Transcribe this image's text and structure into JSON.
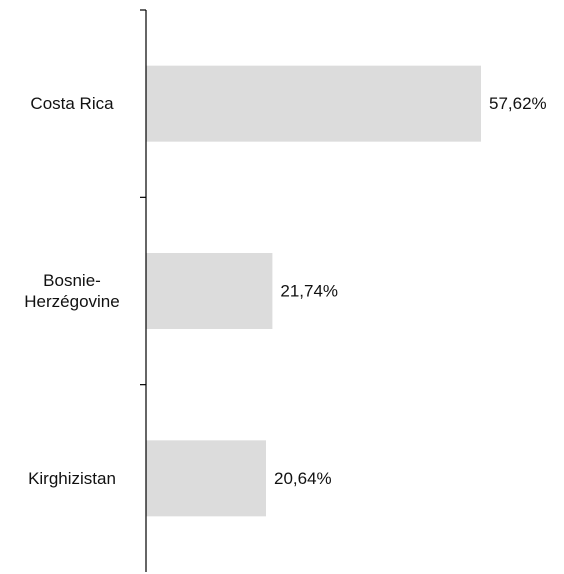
{
  "chart_data": {
    "type": "bar",
    "orientation": "horizontal",
    "title": "",
    "xlabel": "",
    "ylabel": "",
    "categories": [
      [
        "Costa Rica"
      ],
      [
        "Bosnie-",
        "Herzégovine"
      ],
      [
        "Kirghizistan"
      ]
    ],
    "values": [
      57.62,
      21.74,
      20.64
    ],
    "value_labels": [
      "57,62%",
      "21,74%",
      "20,64%"
    ],
    "xlim": [
      0,
      57.62
    ],
    "grid": false,
    "legend": "none",
    "colors": {
      "bar": "#dcdcdc",
      "axis": "#000000",
      "text": "#111111"
    }
  }
}
